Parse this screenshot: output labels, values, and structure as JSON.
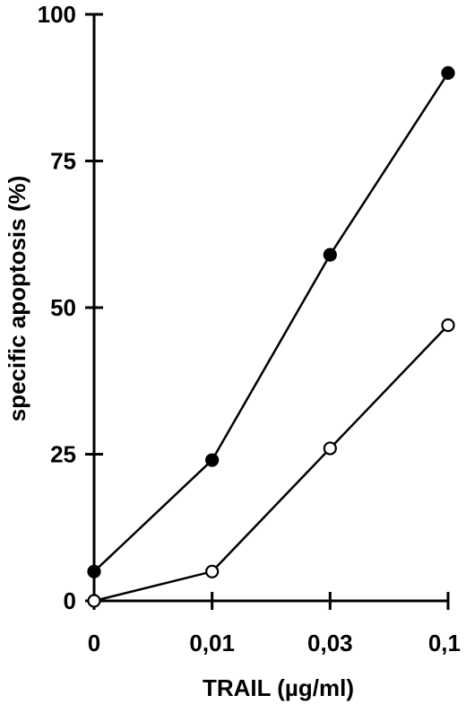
{
  "chart_data": {
    "type": "line",
    "xlabel": "TRAIL (µg/ml)",
    "ylabel": "specific apoptosis (%)",
    "categories": [
      "0",
      "0,01",
      "0,03",
      "0,1"
    ],
    "ylim": [
      0,
      100
    ],
    "yticks": [
      0,
      25,
      50,
      75,
      100
    ],
    "grid": false,
    "series": [
      {
        "marker": "filled-circle",
        "values": [
          5,
          24,
          59,
          90
        ]
      },
      {
        "marker": "open-circle",
        "values": [
          0,
          5,
          26,
          47
        ]
      }
    ]
  }
}
